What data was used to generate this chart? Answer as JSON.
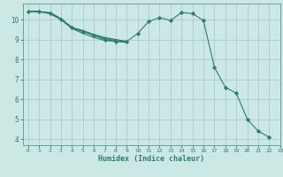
{
  "xlabel": "Humidex (Indice chaleur)",
  "background_color": "#cce8e4",
  "grid_color": "#aacccc",
  "line_color": "#2e7d6e",
  "spine_color": "#5a9a8a",
  "xlim": [
    -0.5,
    23
  ],
  "ylim": [
    3.7,
    10.8
  ],
  "yticks": [
    4,
    5,
    6,
    7,
    8,
    9,
    10
  ],
  "xticks": [
    0,
    1,
    2,
    3,
    4,
    5,
    6,
    7,
    8,
    9,
    10,
    11,
    12,
    13,
    14,
    15,
    16,
    17,
    18,
    19,
    20,
    21,
    22,
    23
  ],
  "lines": [
    {
      "x": [
        0,
        1,
        2,
        3,
        4,
        5,
        6,
        7,
        8,
        9,
        10,
        11,
        12,
        13,
        14,
        15,
        16,
        17,
        18,
        19,
        20,
        21,
        22
      ],
      "y": [
        10.4,
        10.4,
        10.3,
        10.0,
        9.6,
        9.4,
        9.2,
        9.0,
        8.9,
        8.9,
        9.3,
        9.9,
        10.1,
        9.95,
        10.35,
        10.3,
        9.95,
        7.6,
        6.6,
        6.3,
        5.0,
        4.4,
        4.1
      ],
      "marker": true
    },
    {
      "x": [
        0,
        1,
        2,
        3,
        4,
        5,
        6,
        7,
        8,
        9
      ],
      "y": [
        10.4,
        10.4,
        10.3,
        10.0,
        9.55,
        9.3,
        9.1,
        8.95,
        8.9,
        8.85
      ],
      "marker": false
    },
    {
      "x": [
        0,
        1,
        2,
        3,
        4,
        5,
        6,
        7,
        8,
        9
      ],
      "y": [
        10.4,
        10.4,
        10.3,
        10.0,
        9.55,
        9.4,
        9.2,
        9.05,
        8.95,
        8.9
      ],
      "marker": false
    },
    {
      "x": [
        0,
        1,
        2,
        3,
        4,
        5,
        6,
        7,
        8,
        9
      ],
      "y": [
        10.4,
        10.4,
        10.35,
        10.05,
        9.6,
        9.45,
        9.25,
        9.1,
        9.0,
        8.9
      ],
      "marker": false
    }
  ]
}
